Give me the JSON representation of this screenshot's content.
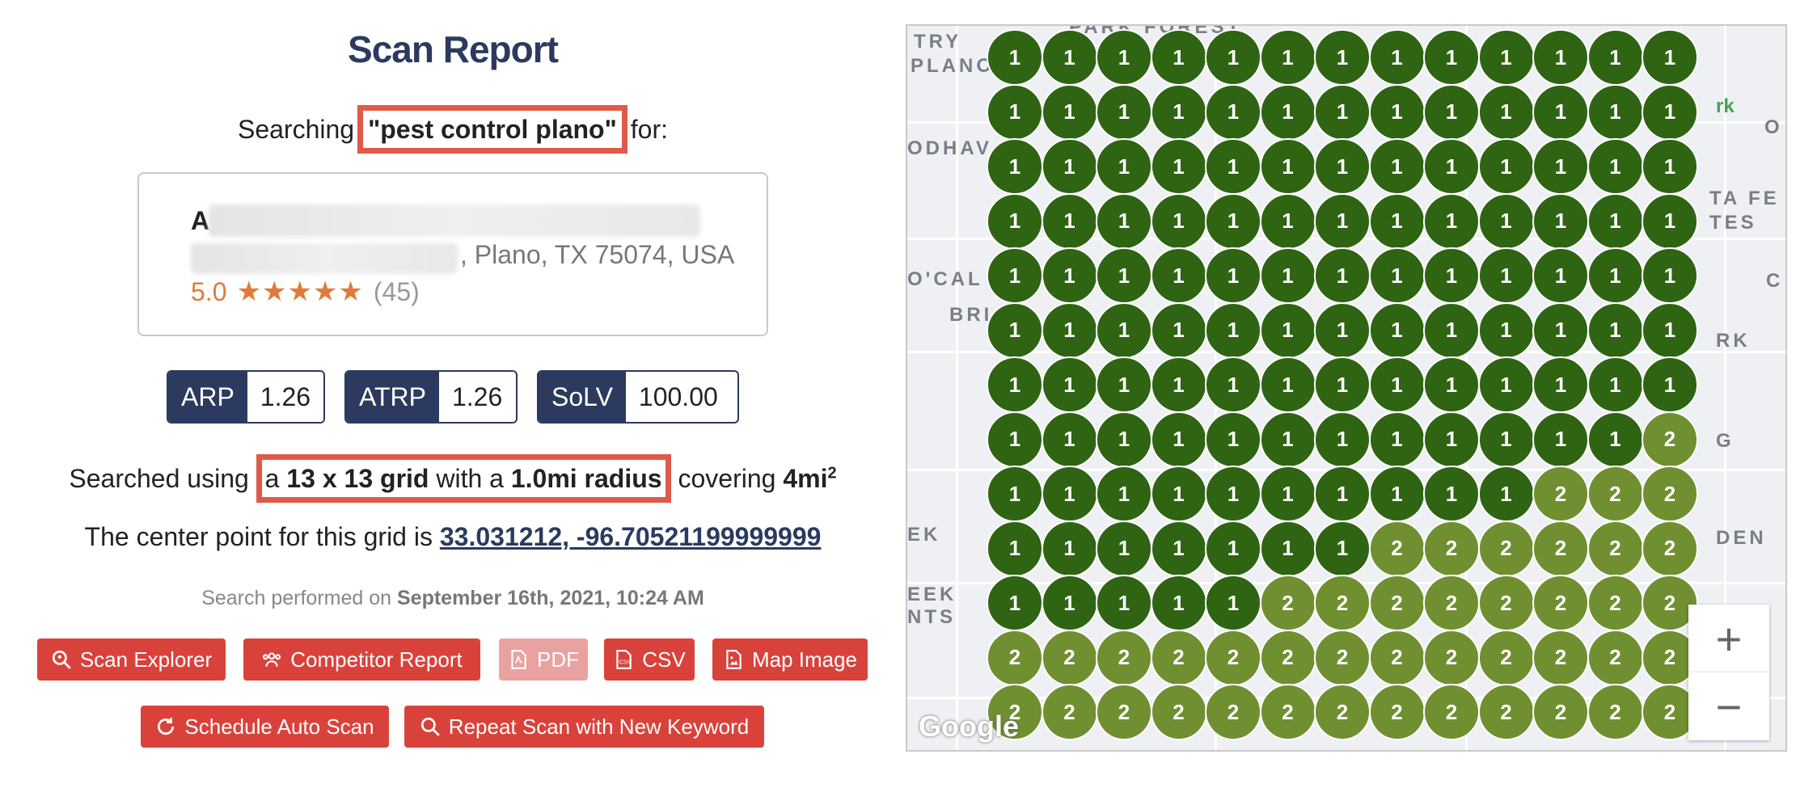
{
  "report": {
    "title": "Scan Report",
    "searching_prefix": "Searching",
    "keyword": "\"pest control plano\"",
    "searching_suffix": "for:",
    "business": {
      "name_initial": "A",
      "address_visible": ", Plano, TX 75074, USA",
      "rating": "5.0",
      "stars": "★★★★★",
      "review_count": "(45)"
    },
    "metrics": [
      {
        "label": "ARP",
        "value": "1.26"
      },
      {
        "label": "ATRP",
        "value": "1.26"
      },
      {
        "label": "SoLV",
        "value": "100.00"
      }
    ],
    "searched": {
      "prefix": "Searched using",
      "a": "a",
      "grid": "13 x 13 grid",
      "with": "with a",
      "radius": "1.0mi radius",
      "covering": "covering",
      "area": "4mi",
      "area_sup": "2"
    },
    "center": {
      "prefix": "The center point for this grid is",
      "coords": "33.031212, -96.70521199999999"
    },
    "performed": {
      "prefix": "Search performed on",
      "date": "September 16th, 2021, 10:24 AM"
    },
    "buttons": {
      "scan_explorer": "Scan Explorer",
      "competitor_report": "Competitor Report",
      "pdf": "PDF",
      "csv": "CSV",
      "map_image": "Map Image",
      "schedule": "Schedule Auto Scan",
      "repeat": "Repeat Scan with New Keyword"
    },
    "colors": {
      "navy": "#2b3a5e",
      "red": "#d9423b",
      "highlight": "#e05a4a",
      "rank1": "#2e6412",
      "rank2": "#6f8f31"
    }
  },
  "map": {
    "labels": [
      "TRY",
      "PLANO",
      "PARK FOREST",
      "ODHAV",
      "TA FE",
      "TES",
      "O'CAL",
      "BRI",
      "RK",
      "EK",
      "DEN",
      "EEK",
      "NTS",
      "O",
      "C",
      "G",
      "rk"
    ],
    "zoom_in": "+",
    "zoom_out": "−",
    "attribution": "Google",
    "grid_ranks": [
      [
        1,
        1,
        1,
        1,
        1,
        1,
        1,
        1,
        1,
        1,
        1,
        1,
        1
      ],
      [
        1,
        1,
        1,
        1,
        1,
        1,
        1,
        1,
        1,
        1,
        1,
        1,
        1
      ],
      [
        1,
        1,
        1,
        1,
        1,
        1,
        1,
        1,
        1,
        1,
        1,
        1,
        1
      ],
      [
        1,
        1,
        1,
        1,
        1,
        1,
        1,
        1,
        1,
        1,
        1,
        1,
        1
      ],
      [
        1,
        1,
        1,
        1,
        1,
        1,
        1,
        1,
        1,
        1,
        1,
        1,
        1
      ],
      [
        1,
        1,
        1,
        1,
        1,
        1,
        1,
        1,
        1,
        1,
        1,
        1,
        1
      ],
      [
        1,
        1,
        1,
        1,
        1,
        1,
        1,
        1,
        1,
        1,
        1,
        1,
        1
      ],
      [
        1,
        1,
        1,
        1,
        1,
        1,
        1,
        1,
        1,
        1,
        1,
        1,
        2
      ],
      [
        1,
        1,
        1,
        1,
        1,
        1,
        1,
        1,
        1,
        1,
        2,
        2,
        2
      ],
      [
        1,
        1,
        1,
        1,
        1,
        1,
        1,
        2,
        2,
        2,
        2,
        2,
        2
      ],
      [
        1,
        1,
        1,
        1,
        1,
        2,
        2,
        2,
        2,
        2,
        2,
        2,
        2
      ],
      [
        2,
        2,
        2,
        2,
        2,
        2,
        2,
        2,
        2,
        2,
        2,
        2,
        2
      ],
      [
        2,
        2,
        2,
        2,
        2,
        2,
        2,
        2,
        2,
        2,
        2,
        2,
        2
      ]
    ]
  }
}
